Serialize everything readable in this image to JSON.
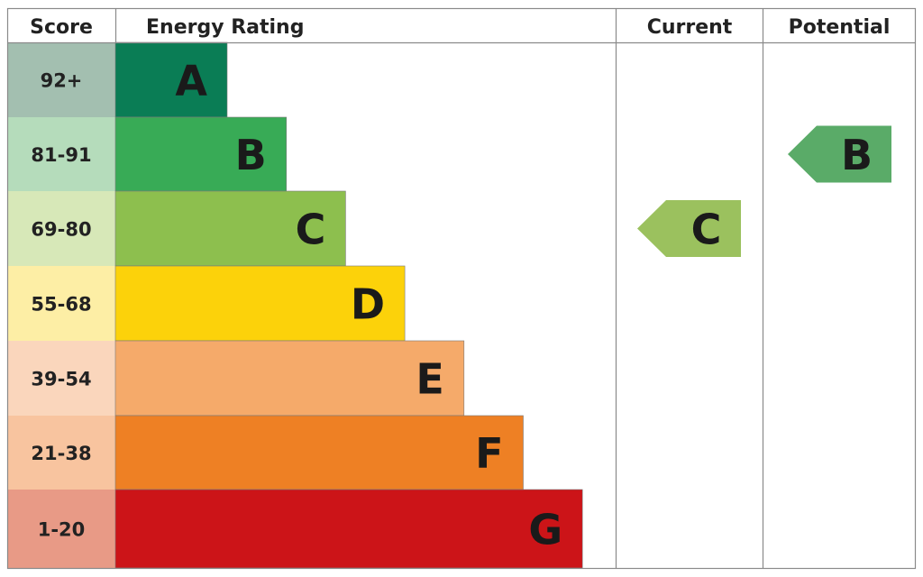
{
  "chart_data": {
    "type": "table",
    "headers": {
      "score": "Score",
      "rating": "Energy Rating",
      "current": "Current",
      "potential": "Potential"
    },
    "bands": [
      {
        "letter": "A",
        "score": "92+",
        "color": "#0a7d55",
        "score_bg": "#a3bfb0"
      },
      {
        "letter": "B",
        "score": "81-91",
        "color": "#38ab56",
        "score_bg": "#b5dcbb"
      },
      {
        "letter": "C",
        "score": "69-80",
        "color": "#8dbf4e",
        "score_bg": "#d7e8b8"
      },
      {
        "letter": "D",
        "score": "55-68",
        "color": "#fcd20a",
        "score_bg": "#fdeea5"
      },
      {
        "letter": "E",
        "score": "39-54",
        "color": "#f5aa6a",
        "score_bg": "#fad6bc"
      },
      {
        "letter": "F",
        "score": "21-38",
        "color": "#ee8024",
        "score_bg": "#f8c49f"
      },
      {
        "letter": "G",
        "score": "1-20",
        "color": "#cc1418",
        "score_bg": "#e89a86"
      }
    ],
    "current": {
      "letter": "C",
      "color": "#9bc15e"
    },
    "potential": {
      "letter": "B",
      "color": "#5aab68"
    }
  }
}
